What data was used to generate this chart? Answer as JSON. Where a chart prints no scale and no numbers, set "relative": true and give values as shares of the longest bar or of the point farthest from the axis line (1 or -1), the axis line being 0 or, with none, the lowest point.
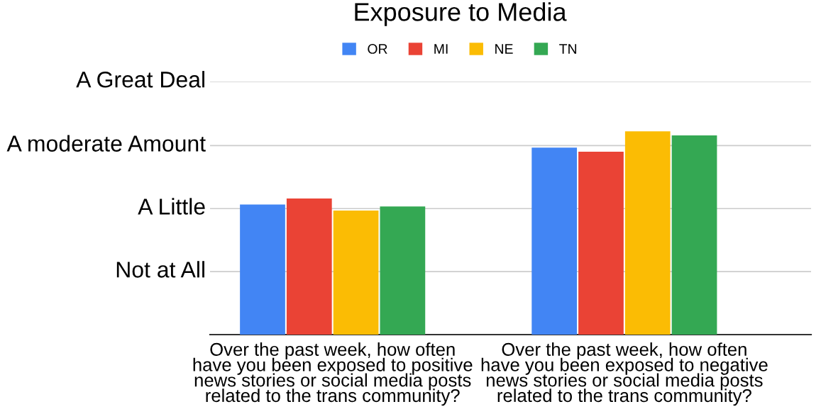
{
  "chart_data": {
    "type": "bar",
    "title": "Exposure to Media",
    "categories": [
      "Over the past week, how often\nhave you been exposed to positive\nnews stories or social media posts\nrelated to the trans community?",
      "Over the past week, how often\nhave you been exposed to negative\nnews stories or social media posts\nrelated to the trans community?"
    ],
    "series": [
      {
        "name": "OR",
        "color": "#4285f4",
        "values": [
          0.64,
          0.92
        ]
      },
      {
        "name": "MI",
        "color": "#ea4335",
        "values": [
          0.67,
          0.9
        ]
      },
      {
        "name": "NE",
        "color": "#fbbc04",
        "values": [
          0.61,
          1
        ]
      },
      {
        "name": "TN",
        "color": "#34a853",
        "values": [
          0.63,
          0.98
        ]
      }
    ],
    "relative": true,
    "ref_lines": [
      {
        "axis": "y",
        "value": 0.31,
        "label": "Not at All",
        "color": "#cccccc"
      },
      {
        "axis": "y",
        "value": 0.62,
        "label": "A Little",
        "color": "#cccccc"
      },
      {
        "axis": "y",
        "value": 0.93,
        "label": "A moderate Amount",
        "color": "#cccccc"
      },
      {
        "axis": "y",
        "value": 1.245,
        "label": "A Great Deal",
        "color": "#cccccc"
      }
    ],
    "legend": "top"
  }
}
